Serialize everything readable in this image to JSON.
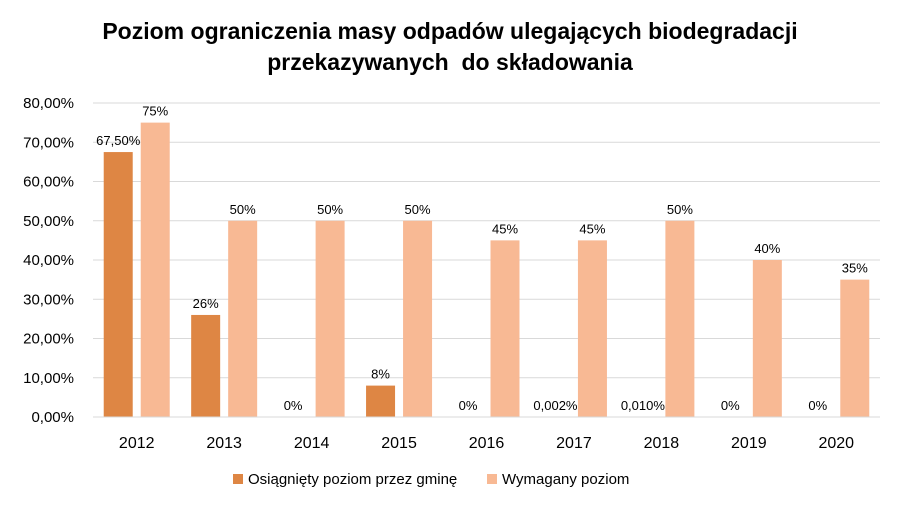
{
  "chart_data": {
    "type": "bar",
    "title_lines": [
      "Poziom ograniczenia masy odpadów ulegających biodegradacji",
      "przekazywanych  do składowania"
    ],
    "categories": [
      "2012",
      "2013",
      "2014",
      "2015",
      "2016",
      "2017",
      "2018",
      "2019",
      "2020"
    ],
    "series": [
      {
        "name": "Osiągnięty poziom przez gminę",
        "color": "#DE8644",
        "values": [
          67.5,
          26,
          0,
          8,
          0,
          0.002,
          0.01,
          0,
          0
        ],
        "labels": [
          "67,50%",
          "26%",
          "0%",
          "8%",
          "0%",
          "0,002%",
          "0,010%",
          "0%",
          "0%"
        ]
      },
      {
        "name": "Wymagany  poziom",
        "color": "#F8B994",
        "values": [
          75,
          50,
          50,
          50,
          45,
          45,
          50,
          40,
          35
        ],
        "labels": [
          "75%",
          "50%",
          "50%",
          "50%",
          "45%",
          "45%",
          "50%",
          "40%",
          "35%"
        ]
      }
    ],
    "ylim": [
      0,
      80
    ],
    "yticks": [
      0,
      10,
      20,
      30,
      40,
      50,
      60,
      70,
      80
    ],
    "ytick_labels": [
      "0,00%",
      "10,00%",
      "20,00%",
      "30,00%",
      "40,00%",
      "50,00%",
      "60,00%",
      "70,00%",
      "80,00%"
    ],
    "grid": true,
    "legend_position": "bottom",
    "gridline_color": "#D9D9D9"
  }
}
